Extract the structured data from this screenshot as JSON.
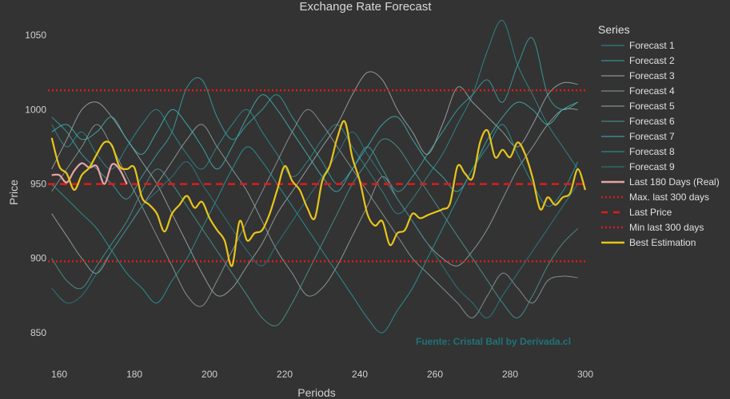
{
  "chart_data": {
    "type": "line",
    "title": "Exchange Rate Forecast",
    "xlabel": "Periods",
    "ylabel": "Price",
    "xlim": [
      157,
      300
    ],
    "ylim": [
      836,
      1063
    ],
    "xticks": [
      160,
      180,
      200,
      220,
      240,
      260,
      280,
      300
    ],
    "yticks": [
      850,
      900,
      950,
      1000,
      1050
    ],
    "grid": false,
    "legend_title": "Series",
    "legend_position": "right",
    "watermark": "Fuente: Cristal Ball by Derivada.cl",
    "forecast_x": [
      158,
      162,
      166,
      170,
      174,
      178,
      182,
      186,
      190,
      194,
      198,
      202,
      206,
      210,
      214,
      218,
      222,
      226,
      230,
      234,
      238,
      242,
      246,
      250,
      254,
      258,
      262,
      266,
      270,
      274,
      278,
      282,
      286,
      290,
      294,
      298
    ],
    "series": [
      {
        "name": "Forecast 1",
        "color": "#2f8f93",
        "values": [
          990,
          975,
          985,
          970,
          960,
          975,
          990,
          1000,
          985,
          970,
          960,
          975,
          990,
          1000,
          985,
          970,
          955,
          965,
          980,
          990,
          975,
          960,
          945,
          930,
          940,
          955,
          970,
          990,
          1010,
          1040,
          1060,
          1030,
          1010,
          990,
          975,
          960
        ]
      },
      {
        "name": "Forecast 2",
        "color": "#3aa6a8",
        "values": [
          995,
          985,
          970,
          960,
          950,
          940,
          955,
          970,
          985,
          1015,
          1020,
          995,
          980,
          990,
          1000,
          1010,
          995,
          980,
          965,
          950,
          960,
          975,
          960,
          945,
          955,
          970,
          985,
          1000,
          1010,
          1020,
          1005,
          1030,
          1048,
          1010,
          1000,
          1005
        ]
      },
      {
        "name": "Forecast 3",
        "color": "#a3abab",
        "values": [
          960,
          980,
          1000,
          1005,
          995,
          980,
          965,
          950,
          930,
          910,
          890,
          875,
          880,
          895,
          910,
          930,
          945,
          960,
          975,
          990,
          1010,
          1025,
          1020,
          1000,
          985,
          970,
          990,
          1015,
          1005,
          995,
          985,
          975,
          990,
          1010,
          1018,
          1017
        ]
      },
      {
        "name": "Forecast 4",
        "color": "#8f9c9c",
        "values": [
          945,
          960,
          975,
          990,
          975,
          955,
          935,
          915,
          895,
          875,
          868,
          885,
          905,
          925,
          945,
          965,
          985,
          1000,
          990,
          975,
          960,
          945,
          930,
          915,
          900,
          890,
          880,
          870,
          860,
          875,
          890,
          880,
          870,
          885,
          888,
          887
        ]
      },
      {
        "name": "Forecast 5",
        "color": "#98a8a6",
        "values": [
          930,
          915,
          900,
          890,
          905,
          920,
          935,
          950,
          965,
          980,
          990,
          975,
          960,
          945,
          925,
          905,
          890,
          875,
          880,
          895,
          915,
          935,
          955,
          940,
          925,
          910,
          900,
          895,
          905,
          920,
          940,
          960,
          975,
          990,
          1000,
          1000
        ]
      },
      {
        "name": "Forecast 6",
        "color": "#4a9a94",
        "values": [
          900,
          885,
          880,
          895,
          910,
          925,
          945,
          960,
          950,
          935,
          920,
          905,
          890,
          875,
          860,
          855,
          870,
          890,
          910,
          930,
          950,
          965,
          980,
          975,
          960,
          945,
          930,
          915,
          900,
          885,
          870,
          860,
          875,
          895,
          910,
          920
        ]
      },
      {
        "name": "Forecast 7",
        "color": "#3fb5b8",
        "values": [
          985,
          990,
          980,
          985,
          995,
          980,
          970,
          985,
          1000,
          990,
          975,
          960,
          975,
          995,
          1010,
          1000,
          985,
          970,
          955,
          945,
          960,
          975,
          990,
          995,
          980,
          965,
          955,
          945,
          960,
          980,
          995,
          1005,
          1000,
          990,
          1000,
          1005
        ]
      },
      {
        "name": "Forecast 8",
        "color": "#2a9ea0",
        "values": [
          950,
          940,
          930,
          920,
          905,
          890,
          880,
          870,
          885,
          900,
          920,
          940,
          960,
          975,
          965,
          950,
          935,
          920,
          905,
          890,
          875,
          860,
          850,
          865,
          880,
          900,
          920,
          940,
          960,
          975,
          990,
          970,
          950,
          935,
          945,
          965
        ]
      },
      {
        "name": "Forecast 9",
        "color": "#2b8088",
        "values": [
          880,
          870,
          875,
          890,
          905,
          920,
          935,
          945,
          955,
          965,
          950,
          935,
          920,
          905,
          895,
          910,
          925,
          940,
          955,
          970,
          985,
          970,
          955,
          940,
          925,
          910,
          895,
          880,
          870,
          860,
          875,
          890,
          905,
          920,
          935,
          950
        ]
      },
      {
        "name": "Last 180 Days (Real)",
        "color": "#e8a3a3",
        "x": [
          158,
          160,
          162,
          164,
          166,
          168,
          170,
          172,
          174,
          176,
          178
        ],
        "values": [
          956,
          956,
          951,
          959,
          964,
          961,
          962,
          950,
          963,
          960,
          950
        ]
      },
      {
        "name": "Max. last 300 days",
        "color": "#e01b1b",
        "style": "dotted",
        "value": 1013
      },
      {
        "name": "Last Price",
        "color": "#e01b1b",
        "style": "dashed",
        "value": 950
      },
      {
        "name": "Min last 300 days",
        "color": "#e01b1b",
        "style": "dotted",
        "value": 898
      },
      {
        "name": "Best Estimation",
        "color": "#e8c51a",
        "x": [
          158,
          160,
          162,
          164,
          166,
          168,
          170,
          172,
          174,
          176,
          178,
          180,
          182,
          184,
          186,
          188,
          190,
          192,
          194,
          196,
          198,
          200,
          202,
          204,
          206,
          208,
          210,
          212,
          214,
          216,
          218,
          220,
          222,
          224,
          226,
          228,
          230,
          232,
          234,
          236,
          238,
          240,
          242,
          244,
          246,
          248,
          250,
          252,
          254,
          256,
          258,
          260,
          262,
          264,
          266,
          268,
          270,
          272,
          274,
          276,
          278,
          280,
          282,
          284,
          286,
          288,
          290,
          292,
          294,
          296,
          298,
          300
        ],
        "values": [
          981,
          962,
          957,
          946,
          956,
          961,
          970,
          978,
          976,
          962,
          960,
          961,
          941,
          936,
          930,
          918,
          930,
          936,
          942,
          934,
          938,
          927,
          919,
          912,
          895,
          925,
          912,
          917,
          919,
          930,
          946,
          962,
          952,
          946,
          934,
          927,
          952,
          962,
          981,
          992,
          968,
          952,
          930,
          922,
          925,
          909,
          917,
          919,
          930,
          927,
          929,
          931,
          933,
          937,
          962,
          957,
          954,
          978,
          986,
          968,
          973,
          968,
          978,
          970,
          954,
          933,
          941,
          936,
          941,
          944,
          960,
          946
        ]
      }
    ]
  }
}
